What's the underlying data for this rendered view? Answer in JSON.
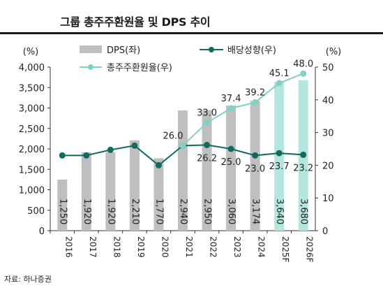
{
  "title": "그룹 총주주환원율 및 DPS 추이",
  "source": "자료: 하나증권",
  "chart_data": {
    "type": "bar",
    "categories": [
      "2016",
      "2017",
      "2018",
      "2019",
      "2020",
      "2021",
      "2022",
      "2023",
      "2024",
      "2025F",
      "2026F"
    ],
    "series": [
      {
        "name": "DPS(좌)",
        "type": "bar",
        "axis": "left",
        "values": [
          1250,
          1920,
          1920,
          2210,
          1770,
          2940,
          2950,
          3060,
          3174,
          3640,
          3680
        ],
        "labels": [
          "1,250",
          "1,920",
          "1,920",
          "2,210",
          "1,770",
          "2,940",
          "2,950",
          "3,060",
          "3,174",
          "3,640",
          "3,680"
        ],
        "color": "#bfbfbf",
        "forecast_color": "#b3e6de"
      },
      {
        "name": "배당성향(우)",
        "type": "line",
        "axis": "right",
        "values": [
          23.0,
          23.0,
          24.7,
          26.0,
          20.0,
          26.0,
          26.2,
          25.0,
          23.0,
          23.7,
          23.2
        ],
        "labels": [
          "",
          "",
          "",
          "",
          "",
          "",
          "26.2",
          "25.0",
          "23.0",
          "23.7",
          "23.2"
        ],
        "color": "#0f6b5f"
      },
      {
        "name": "총주주환원율(우)",
        "type": "line",
        "axis": "right",
        "values": [
          null,
          null,
          null,
          null,
          null,
          26.0,
          33.0,
          37.4,
          39.2,
          45.1,
          48.0
        ],
        "labels": [
          "",
          "",
          "",
          "",
          "",
          "26.0",
          "33.0",
          "37.4",
          "39.2",
          "45.1",
          "48.0"
        ],
        "color": "#7fd1c6"
      }
    ],
    "y_left": {
      "unit": "(%)",
      "min": 0,
      "max": 4000,
      "ticks": [
        "0",
        "500",
        "1,000",
        "1,500",
        "2,000",
        "2,500",
        "3,000",
        "3,500",
        "4,000"
      ]
    },
    "y_right": {
      "unit": "(%)",
      "min": 0,
      "max": 50,
      "ticks": [
        "0",
        "10",
        "20",
        "30",
        "40",
        "50"
      ]
    },
    "legend": [
      "DPS(좌)",
      "배당성향(우)",
      "총주주환원율(우)"
    ],
    "grid": false,
    "legend_position": "top"
  }
}
